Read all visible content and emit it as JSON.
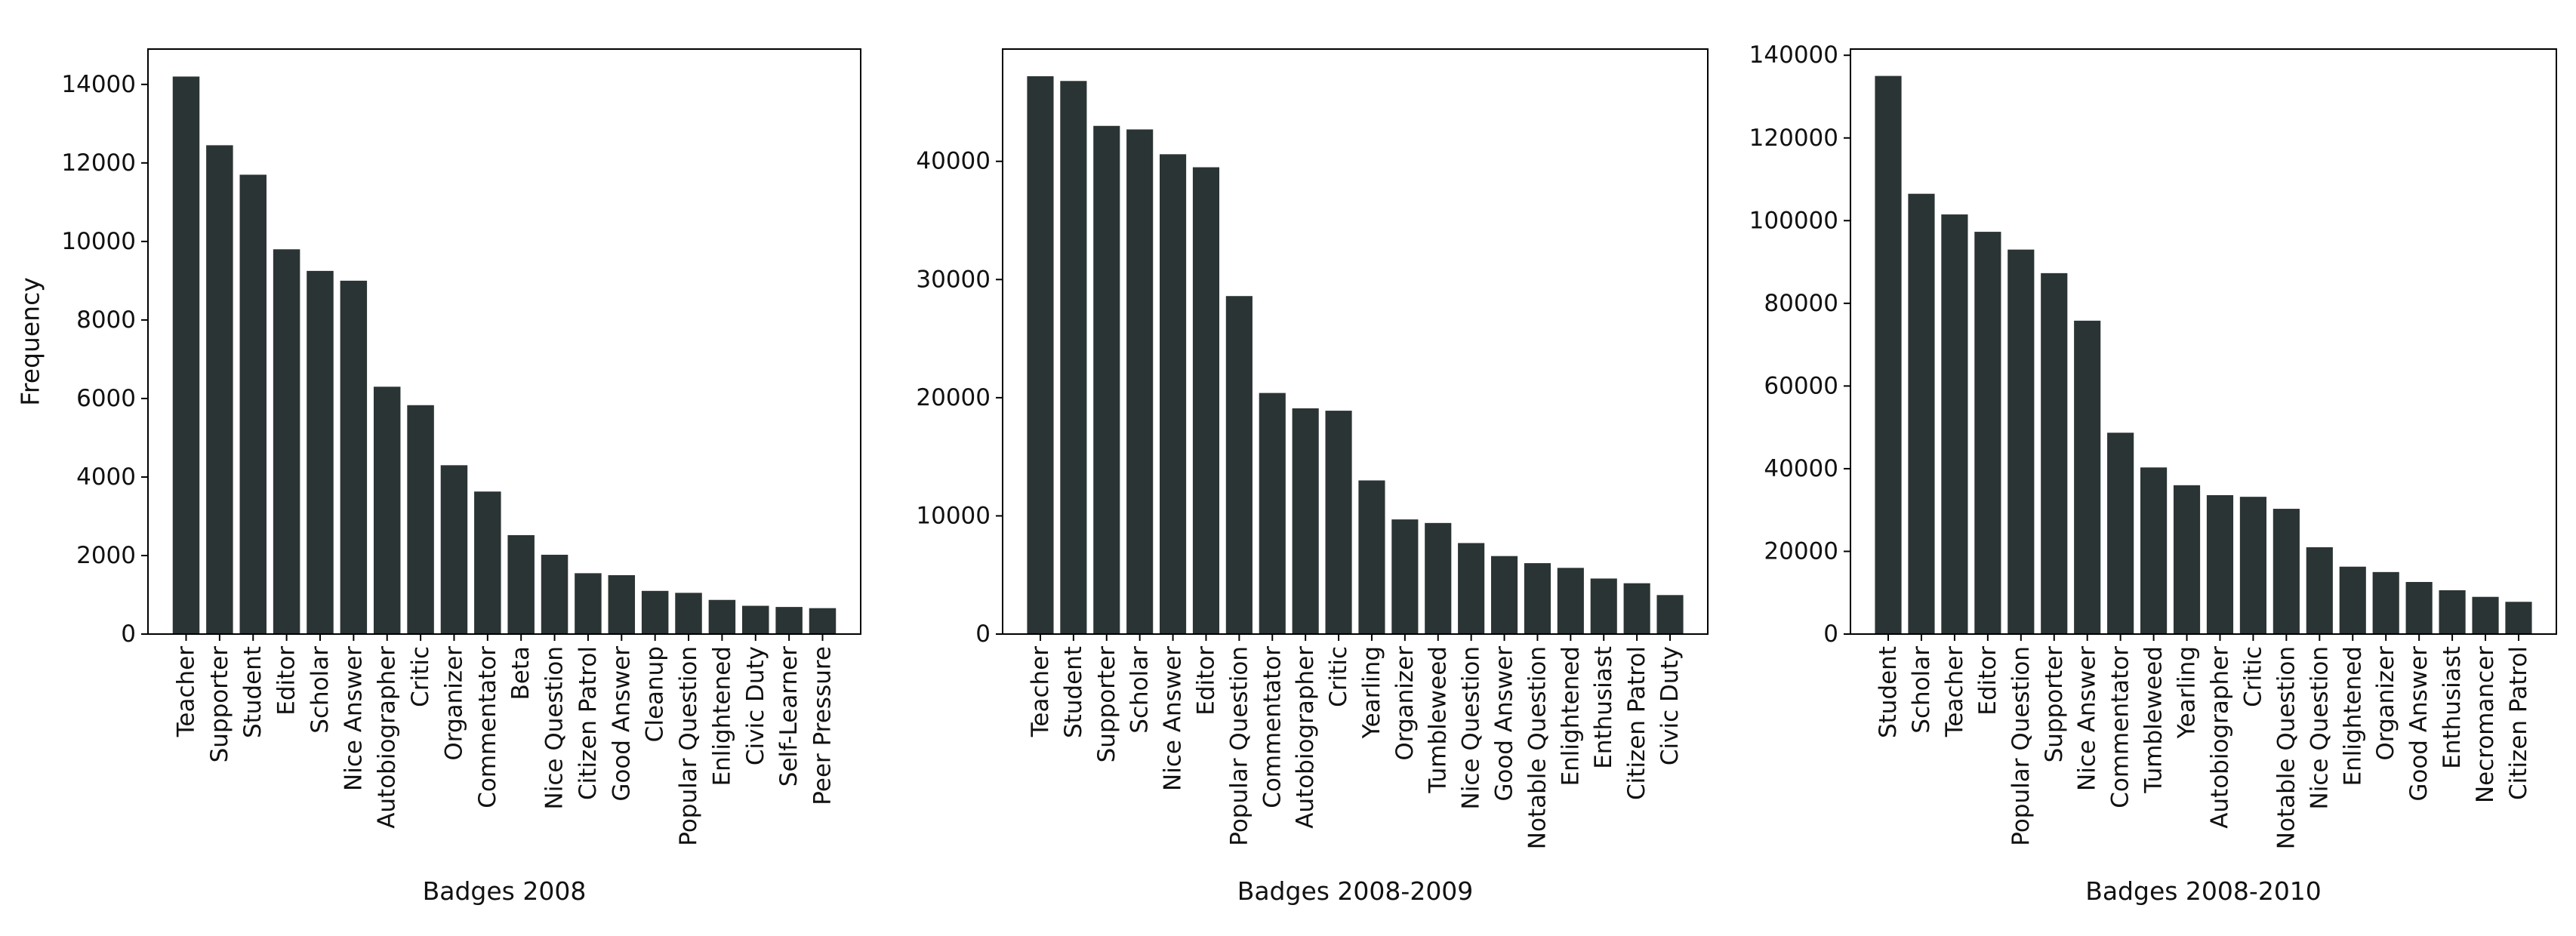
{
  "style": {
    "bar_color": "#2b3434",
    "axis_color": "#000000"
  },
  "chart_data": [
    {
      "type": "bar",
      "title": "",
      "xlabel": "Badges 2008",
      "ylabel": "Frequency",
      "ylim": [
        0,
        14900
      ],
      "yticks": [
        0,
        2000,
        4000,
        6000,
        8000,
        10000,
        12000,
        14000
      ],
      "categories": [
        "Teacher",
        "Supporter",
        "Student",
        "Editor",
        "Scholar",
        "Nice Answer",
        "Autobiographer",
        "Critic",
        "Organizer",
        "Commentator",
        "Beta",
        "Nice Question",
        "Citizen Patrol",
        "Good Answer",
        "Cleanup",
        "Popular Question",
        "Enlightened",
        "Civic Duty",
        "Self-Learner",
        "Peer Pressure"
      ],
      "values": [
        14200,
        12450,
        11700,
        9800,
        9250,
        9000,
        6300,
        5830,
        4300,
        3630,
        2520,
        2020,
        1550,
        1500,
        1100,
        1050,
        870,
        720,
        690,
        660
      ]
    },
    {
      "type": "bar",
      "title": "",
      "xlabel": "Badges 2008-2009",
      "ylabel": "",
      "ylim": [
        0,
        49500
      ],
      "yticks": [
        0,
        10000,
        20000,
        30000,
        40000
      ],
      "categories": [
        "Teacher",
        "Student",
        "Supporter",
        "Scholar",
        "Nice Answer",
        "Editor",
        "Popular Question",
        "Commentator",
        "Autobiographer",
        "Critic",
        "Yearling",
        "Organizer",
        "Tumbleweed",
        "Nice Question",
        "Good Answer",
        "Notable Question",
        "Enlightened",
        "Enthusiast",
        "Citizen Patrol",
        "Civic Duty"
      ],
      "values": [
        47200,
        46800,
        43000,
        42700,
        40600,
        39500,
        28600,
        20400,
        19100,
        18900,
        13000,
        9700,
        9400,
        7700,
        6600,
        6000,
        5600,
        4700,
        4300,
        3300
      ]
    },
    {
      "type": "bar",
      "title": "",
      "xlabel": "Badges 2008-2010",
      "ylabel": "",
      "ylim": [
        0,
        141500
      ],
      "yticks": [
        0,
        20000,
        40000,
        60000,
        80000,
        100000,
        120000,
        140000
      ],
      "categories": [
        "Student",
        "Scholar",
        "Teacher",
        "Editor",
        "Popular Question",
        "Supporter",
        "Nice Answer",
        "Commentator",
        "Tumbleweed",
        "Yearling",
        "Autobiographer",
        "Critic",
        "Notable Question",
        "Nice Question",
        "Enlightened",
        "Organizer",
        "Good Answer",
        "Enthusiast",
        "Necromancer",
        "Citizen Patrol"
      ],
      "values": [
        135000,
        106500,
        101500,
        97300,
        93000,
        87300,
        75800,
        48700,
        40300,
        36000,
        33600,
        33200,
        30300,
        21000,
        16300,
        15000,
        12600,
        10600,
        9000,
        7800
      ]
    }
  ]
}
